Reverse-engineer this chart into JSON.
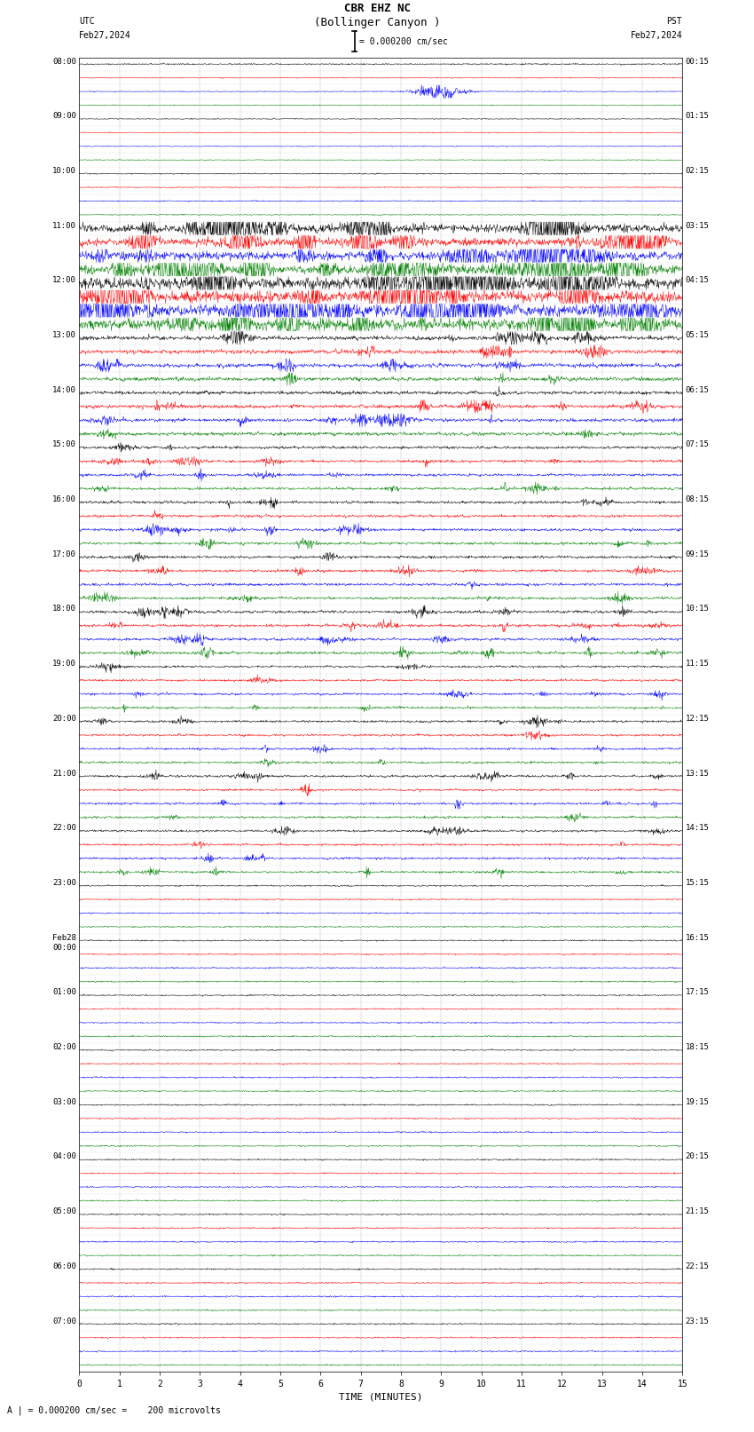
{
  "title_line1": "CBR EHZ NC",
  "title_line2": "(Bollinger Canyon )",
  "scale_label": "= 0.000200 cm/sec",
  "bottom_label": "A | = 0.000200 cm/sec =    200 microvolts",
  "utc_label": "UTC",
  "utc_date": "Feb27,2024",
  "pst_label": "PST",
  "pst_date": "Feb27,2024",
  "xlabel": "TIME (MINUTES)",
  "left_times_labeled": [
    0,
    4,
    8,
    12,
    16,
    20,
    24,
    28,
    32,
    36,
    40,
    44,
    48,
    52,
    56,
    60,
    64,
    68,
    72,
    76,
    80,
    84,
    88,
    92
  ],
  "left_times_text": [
    "08:00",
    "09:00",
    "10:00",
    "11:00",
    "12:00",
    "13:00",
    "14:00",
    "15:00",
    "16:00",
    "17:00",
    "18:00",
    "19:00",
    "20:00",
    "21:00",
    "22:00",
    "23:00",
    "Feb28\n00:00",
    "01:00",
    "02:00",
    "03:00",
    "04:00",
    "05:00",
    "06:00",
    "07:00"
  ],
  "right_times_labeled": [
    0,
    4,
    8,
    12,
    16,
    20,
    24,
    28,
    32,
    36,
    40,
    44,
    48,
    52,
    56,
    60,
    64,
    68,
    72,
    76,
    80,
    84,
    88,
    92
  ],
  "right_times_text": [
    "00:15",
    "01:15",
    "02:15",
    "03:15",
    "04:15",
    "05:15",
    "06:15",
    "07:15",
    "08:15",
    "09:15",
    "10:15",
    "11:15",
    "12:15",
    "13:15",
    "14:15",
    "15:15",
    "16:15",
    "17:15",
    "18:15",
    "19:15",
    "20:15",
    "21:15",
    "22:15",
    "23:15"
  ],
  "n_rows": 96,
  "colors_cycle": [
    "black",
    "red",
    "blue",
    "green"
  ],
  "bg_color": "white",
  "fig_width": 8.5,
  "fig_height": 16.13,
  "x_min": 0,
  "x_max": 15,
  "x_ticks": [
    0,
    1,
    2,
    3,
    4,
    5,
    6,
    7,
    8,
    9,
    10,
    11,
    12,
    13,
    14,
    15
  ],
  "seed": 42,
  "amp_quiet": 0.025,
  "amp_moderate": 0.07,
  "amp_active": 0.22,
  "amp_very_active": 0.32,
  "grid_color": "#aaaaaa",
  "grid_linewidth": 0.3
}
